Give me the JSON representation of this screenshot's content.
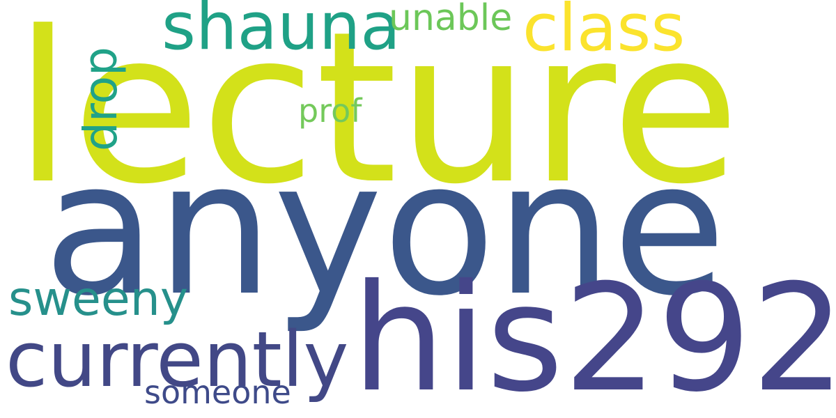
{
  "words": [
    {
      "key": "lecture",
      "text": "lecture",
      "color": "#d3e11a"
    },
    {
      "key": "anyone",
      "text": "anyone",
      "color": "#3b578b"
    },
    {
      "key": "his292",
      "text": "his292",
      "color": "#45468a"
    },
    {
      "key": "currently",
      "text": "currently",
      "color": "#424886"
    },
    {
      "key": "shauna",
      "text": "shauna",
      "color": "#1fa186"
    },
    {
      "key": "class",
      "text": "class",
      "color": "#fbe32d"
    },
    {
      "key": "sweeny",
      "text": "sweeny",
      "color": "#26908b"
    },
    {
      "key": "unable",
      "text": "unable",
      "color": "#6cc759"
    },
    {
      "key": "someone",
      "text": "someone",
      "color": "#3e4a89"
    },
    {
      "key": "prof",
      "text": "prof",
      "color": "#74c95b"
    },
    {
      "key": "drop",
      "text": "drop",
      "color": "#20a288"
    }
  ]
}
